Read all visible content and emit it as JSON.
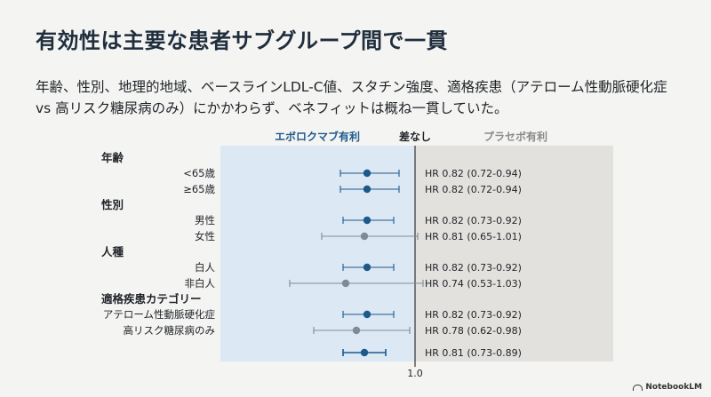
{
  "title": "有効性は主要な患者サブグループ間で一貫",
  "subtitle": "年齢、性別、地理的地域、ベースラインLDL-C値、スタチン強度、適格疾患（アテローム性動脈硬化症 vs 高リスク糖尿病のみ）にかかわらず、ベネフィットは概ね一貫していた。",
  "brand": "NotebookLM",
  "colors": {
    "favor_panel": "#dce8f4",
    "placebo_panel": "#e2e1de",
    "primary_marker": "#1c5a8c",
    "grey_marker": "#7f8b97",
    "favor_label": "#1f5b8e",
    "placebo_label": "#8a8a8a"
  },
  "chart_data": {
    "type": "forest",
    "xlabel": "",
    "reference_value": 1.0,
    "reference_tick_label": "1.0",
    "xlim": [
      0.5,
      1.4
    ],
    "header": {
      "favor_left": "エボロクマブ有利",
      "no_difference": "差なし",
      "favor_right": "プラセボ有利"
    },
    "groups": [
      {
        "heading": "年齢",
        "rows": [
          {
            "label": "<65歳",
            "hr": 0.82,
            "lo": 0.72,
            "hi": 0.94,
            "text": "HR 0.82 (0.72-0.94)",
            "muted": false
          },
          {
            "label": "≥65歳",
            "hr": 0.82,
            "lo": 0.72,
            "hi": 0.94,
            "text": "HR 0.82 (0.72-0.94)",
            "muted": false
          }
        ]
      },
      {
        "heading": "性別",
        "rows": [
          {
            "label": "男性",
            "hr": 0.82,
            "lo": 0.73,
            "hi": 0.92,
            "text": "HR 0.82 (0.73-0.92)",
            "muted": false
          },
          {
            "label": "女性",
            "hr": 0.81,
            "lo": 0.65,
            "hi": 1.01,
            "text": "HR 0.81 (0.65-1.01)",
            "muted": true
          }
        ]
      },
      {
        "heading": "人種",
        "rows": [
          {
            "label": "白人",
            "hr": 0.82,
            "lo": 0.73,
            "hi": 0.92,
            "text": "HR 0.82 (0.73-0.92)",
            "muted": false
          },
          {
            "label": "非白人",
            "hr": 0.74,
            "lo": 0.53,
            "hi": 1.03,
            "text": "HR 0.74 (0.53-1.03)",
            "muted": true
          }
        ]
      },
      {
        "heading": "適格疾患カテゴリー",
        "rows": [
          {
            "label": "アテローム性動脈硬化症",
            "hr": 0.82,
            "lo": 0.73,
            "hi": 0.92,
            "text": "HR 0.82 (0.73-0.92)",
            "muted": false
          },
          {
            "label": "高リスク糖尿病のみ",
            "hr": 0.78,
            "lo": 0.62,
            "hi": 0.98,
            "text": "HR 0.78 (0.62-0.98)",
            "muted": true
          }
        ]
      }
    ],
    "overall": {
      "label": "",
      "hr": 0.81,
      "lo": 0.73,
      "hi": 0.89,
      "text": "HR 0.81 (0.73-0.89)"
    }
  }
}
